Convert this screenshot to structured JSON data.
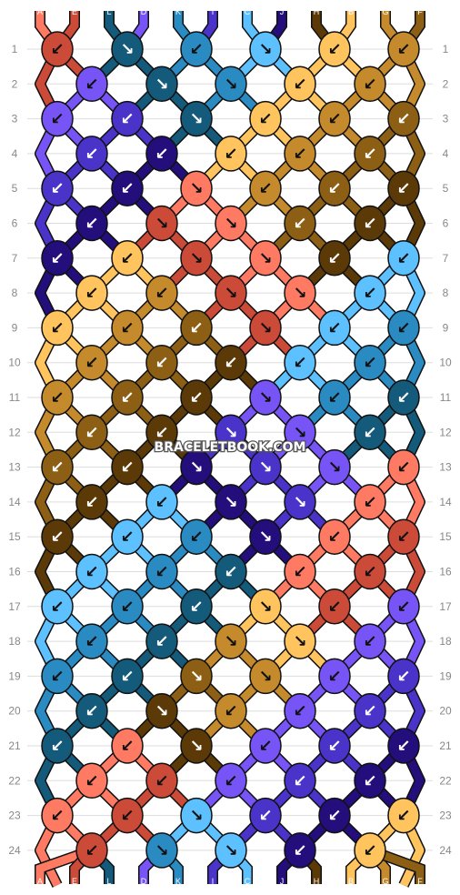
{
  "watermark": "BRACELETBOOK.COM",
  "strands_top": [
    "A",
    "E",
    "L",
    "D",
    "K",
    "I",
    "C",
    "J",
    "H",
    "B",
    "G",
    "F"
  ],
  "strands_bottom": [
    "A",
    "E",
    "L",
    "D",
    "K",
    "I",
    "C",
    "J",
    "H",
    "B",
    "G",
    "F"
  ],
  "strand_colors": {
    "A": "#ff7a63",
    "E": "#cc4a38",
    "L": "#145a7a",
    "D": "#7754f5",
    "K": "#2a8ac2",
    "I": "#4a33c8",
    "C": "#5ec1ff",
    "J": "#230e7c",
    "H": "#5c3a07",
    "B": "#ffc45e",
    "G": "#c58a2c",
    "F": "#8c5f14"
  },
  "row_numbers": [
    "1",
    "2",
    "3",
    "4",
    "5",
    "6",
    "7",
    "8",
    "9",
    "10",
    "11",
    "12",
    "13",
    "14",
    "15",
    "16",
    "17",
    "18",
    "19",
    "20",
    "21",
    "22",
    "23",
    "24"
  ],
  "knots": [
    [
      {
        "c": "E",
        "d": "↙"
      },
      {
        "c": "L",
        "d": "↘"
      },
      {
        "c": "K",
        "d": "↙"
      },
      {
        "c": "C",
        "d": "↘"
      },
      {
        "c": "B",
        "d": "↙"
      },
      {
        "c": "G",
        "d": "↙"
      }
    ],
    [
      {
        "c": "D",
        "d": "↙"
      },
      {
        "c": "L",
        "d": "↘"
      },
      {
        "c": "K",
        "d": "↘"
      },
      {
        "c": "B",
        "d": "↙"
      },
      {
        "c": "G",
        "d": "↙"
      }
    ],
    [
      {
        "c": "D",
        "d": "↙"
      },
      {
        "c": "I",
        "d": "↙"
      },
      {
        "c": "L",
        "d": "↘"
      },
      {
        "c": "B",
        "d": "↙"
      },
      {
        "c": "G",
        "d": "↙"
      },
      {
        "c": "F",
        "d": "↙"
      }
    ],
    [
      {
        "c": "I",
        "d": "↙"
      },
      {
        "c": "J",
        "d": "↙"
      },
      {
        "c": "B",
        "d": "↙"
      },
      {
        "c": "G",
        "d": "↙"
      },
      {
        "c": "F",
        "d": "↙"
      }
    ],
    [
      {
        "c": "I",
        "d": "↙"
      },
      {
        "c": "J",
        "d": "↙"
      },
      {
        "c": "A",
        "d": "↘"
      },
      {
        "c": "G",
        "d": "↙"
      },
      {
        "c": "F",
        "d": "↙"
      },
      {
        "c": "H",
        "d": "↙"
      }
    ],
    [
      {
        "c": "J",
        "d": "↙"
      },
      {
        "c": "E",
        "d": "↘"
      },
      {
        "c": "A",
        "d": "↘"
      },
      {
        "c": "F",
        "d": "↙"
      },
      {
        "c": "H",
        "d": "↙"
      }
    ],
    [
      {
        "c": "J",
        "d": "↙"
      },
      {
        "c": "B",
        "d": "↙"
      },
      {
        "c": "E",
        "d": "↘"
      },
      {
        "c": "A",
        "d": "↘"
      },
      {
        "c": "H",
        "d": "↙"
      },
      {
        "c": "C",
        "d": "↙"
      }
    ],
    [
      {
        "c": "B",
        "d": "↙"
      },
      {
        "c": "G",
        "d": "↙"
      },
      {
        "c": "E",
        "d": "↘"
      },
      {
        "c": "A",
        "d": "↘"
      },
      {
        "c": "C",
        "d": "↙"
      }
    ],
    [
      {
        "c": "B",
        "d": "↙"
      },
      {
        "c": "G",
        "d": "↙"
      },
      {
        "c": "F",
        "d": "↙"
      },
      {
        "c": "E",
        "d": "↘"
      },
      {
        "c": "C",
        "d": "↙"
      },
      {
        "c": "K",
        "d": "↙"
      }
    ],
    [
      {
        "c": "G",
        "d": "↙"
      },
      {
        "c": "F",
        "d": "↙"
      },
      {
        "c": "H",
        "d": "↙"
      },
      {
        "c": "C",
        "d": "↙"
      },
      {
        "c": "K",
        "d": "↙"
      }
    ],
    [
      {
        "c": "G",
        "d": "↙"
      },
      {
        "c": "F",
        "d": "↙"
      },
      {
        "c": "H",
        "d": "↙"
      },
      {
        "c": "D",
        "d": "↘"
      },
      {
        "c": "K",
        "d": "↙"
      },
      {
        "c": "L",
        "d": "↙"
      }
    ],
    [
      {
        "c": "F",
        "d": "↙"
      },
      {
        "c": "H",
        "d": "↙"
      },
      {
        "c": "I",
        "d": "↘"
      },
      {
        "c": "D",
        "d": "↘"
      },
      {
        "c": "L",
        "d": "↙"
      }
    ],
    [
      {
        "c": "F",
        "d": "↙"
      },
      {
        "c": "H",
        "d": "↙"
      },
      {
        "c": "J",
        "d": "↘"
      },
      {
        "c": "I",
        "d": "↘"
      },
      {
        "c": "D",
        "d": "↘"
      },
      {
        "c": "A",
        "d": "↙"
      }
    ],
    [
      {
        "c": "H",
        "d": "↙"
      },
      {
        "c": "C",
        "d": "↙"
      },
      {
        "c": "J",
        "d": "↘"
      },
      {
        "c": "I",
        "d": "↘"
      },
      {
        "c": "A",
        "d": "↙"
      }
    ],
    [
      {
        "c": "H",
        "d": "↙"
      },
      {
        "c": "C",
        "d": "↙"
      },
      {
        "c": "K",
        "d": "↙"
      },
      {
        "c": "J",
        "d": "↘"
      },
      {
        "c": "A",
        "d": "↙"
      },
      {
        "c": "E",
        "d": "↙"
      }
    ],
    [
      {
        "c": "C",
        "d": "↙"
      },
      {
        "c": "K",
        "d": "↙"
      },
      {
        "c": "L",
        "d": "↙"
      },
      {
        "c": "A",
        "d": "↙"
      },
      {
        "c": "E",
        "d": "↙"
      }
    ],
    [
      {
        "c": "C",
        "d": "↙"
      },
      {
        "c": "K",
        "d": "↙"
      },
      {
        "c": "L",
        "d": "↙"
      },
      {
        "c": "B",
        "d": "↘"
      },
      {
        "c": "E",
        "d": "↙"
      },
      {
        "c": "D",
        "d": "↙"
      }
    ],
    [
      {
        "c": "K",
        "d": "↙"
      },
      {
        "c": "L",
        "d": "↙"
      },
      {
        "c": "G",
        "d": "↘"
      },
      {
        "c": "B",
        "d": "↘"
      },
      {
        "c": "D",
        "d": "↙"
      }
    ],
    [
      {
        "c": "K",
        "d": "↙"
      },
      {
        "c": "L",
        "d": "↙"
      },
      {
        "c": "F",
        "d": "↘"
      },
      {
        "c": "G",
        "d": "↘"
      },
      {
        "c": "D",
        "d": "↙"
      },
      {
        "c": "I",
        "d": "↙"
      }
    ],
    [
      {
        "c": "L",
        "d": "↙"
      },
      {
        "c": "H",
        "d": "↘"
      },
      {
        "c": "G",
        "d": "↙"
      },
      {
        "c": "D",
        "d": "↙"
      },
      {
        "c": "I",
        "d": "↙"
      }
    ],
    [
      {
        "c": "L",
        "d": "↙"
      },
      {
        "c": "A",
        "d": "↙"
      },
      {
        "c": "H",
        "d": "↘"
      },
      {
        "c": "D",
        "d": "↙"
      },
      {
        "c": "I",
        "d": "↙"
      },
      {
        "c": "J",
        "d": "↙"
      }
    ],
    [
      {
        "c": "A",
        "d": "↙"
      },
      {
        "c": "E",
        "d": "↙"
      },
      {
        "c": "D",
        "d": "↙"
      },
      {
        "c": "I",
        "d": "↙"
      },
      {
        "c": "J",
        "d": "↙"
      }
    ],
    [
      {
        "c": "A",
        "d": "↙"
      },
      {
        "c": "E",
        "d": "↙"
      },
      {
        "c": "C",
        "d": "↘"
      },
      {
        "c": "I",
        "d": "↙"
      },
      {
        "c": "J",
        "d": "↙"
      },
      {
        "c": "B",
        "d": "↙"
      }
    ],
    [
      {
        "c": "E",
        "d": "↙"
      },
      {
        "c": "K",
        "d": "↘"
      },
      {
        "c": "C",
        "d": "↘"
      },
      {
        "c": "J",
        "d": "↙"
      },
      {
        "c": "B",
        "d": "↙"
      }
    ]
  ]
}
